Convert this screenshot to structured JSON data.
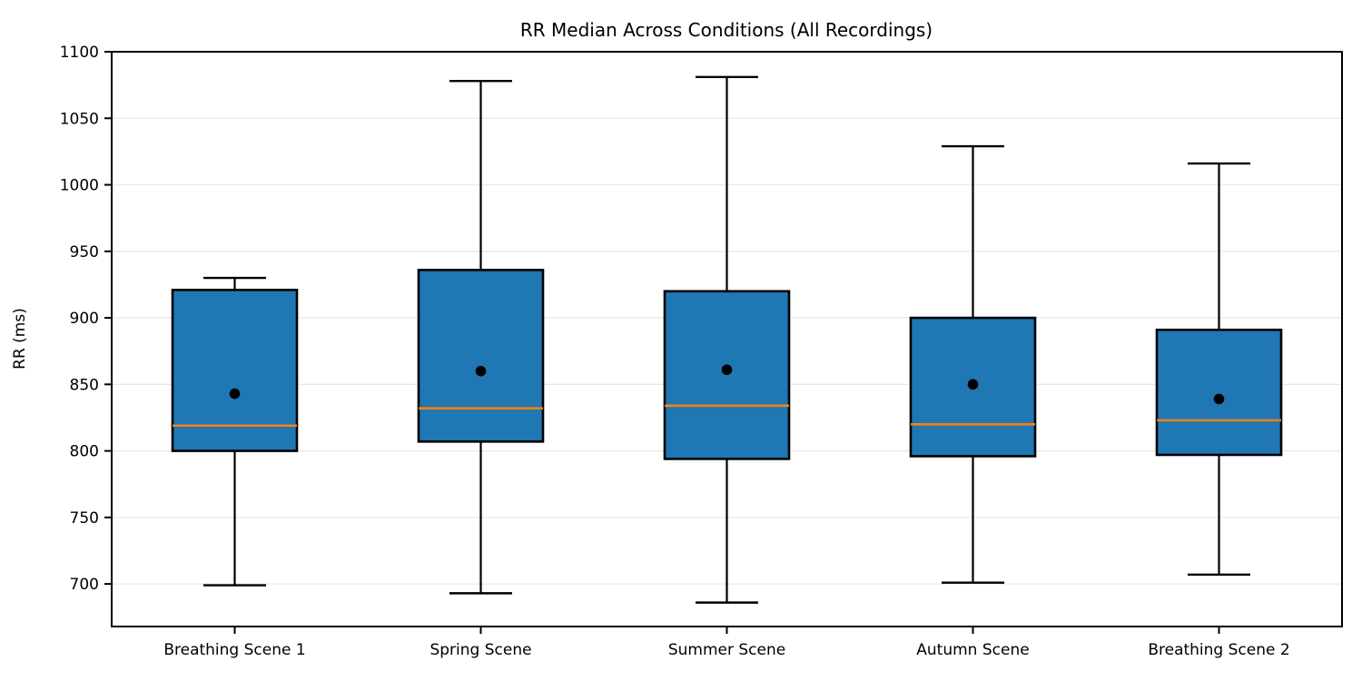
{
  "chart_data": {
    "type": "box",
    "title": "RR Median Across Conditions (All Recordings)",
    "xlabel": "",
    "ylabel": "RR (ms)",
    "categories": [
      "Breathing Scene 1",
      "Spring Scene",
      "Summer Scene",
      "Autumn Scene",
      "Breathing Scene 2"
    ],
    "series": [
      {
        "name": "Breathing Scene 1",
        "whisker_low": 699,
        "q1": 800,
        "median": 819,
        "mean": 843,
        "q3": 921,
        "whisker_high": 930
      },
      {
        "name": "Spring Scene",
        "whisker_low": 693,
        "q1": 807,
        "median": 832,
        "mean": 860,
        "q3": 936,
        "whisker_high": 1078
      },
      {
        "name": "Summer Scene",
        "whisker_low": 686,
        "q1": 794,
        "median": 834,
        "mean": 861,
        "q3": 920,
        "whisker_high": 1081
      },
      {
        "name": "Autumn Scene",
        "whisker_low": 701,
        "q1": 796,
        "median": 820,
        "mean": 850,
        "q3": 900,
        "whisker_high": 1029
      },
      {
        "name": "Breathing Scene 2",
        "whisker_low": 707,
        "q1": 797,
        "median": 823,
        "mean": 839,
        "q3": 891,
        "whisker_high": 1016
      }
    ],
    "ylim": [
      668,
      1100
    ],
    "yticks": [
      700,
      750,
      800,
      850,
      900,
      950,
      1000,
      1050,
      1100
    ],
    "grid": "horizontal",
    "legend": "none",
    "colors": {
      "box_fill": "#1f77b4",
      "box_edge": "#000000",
      "median_line": "#ff7f0e",
      "mean_marker": "#000000",
      "whisker": "#000000",
      "grid_line": "#e8e8e8",
      "spine": "#000000",
      "background": "#ffffff"
    }
  }
}
